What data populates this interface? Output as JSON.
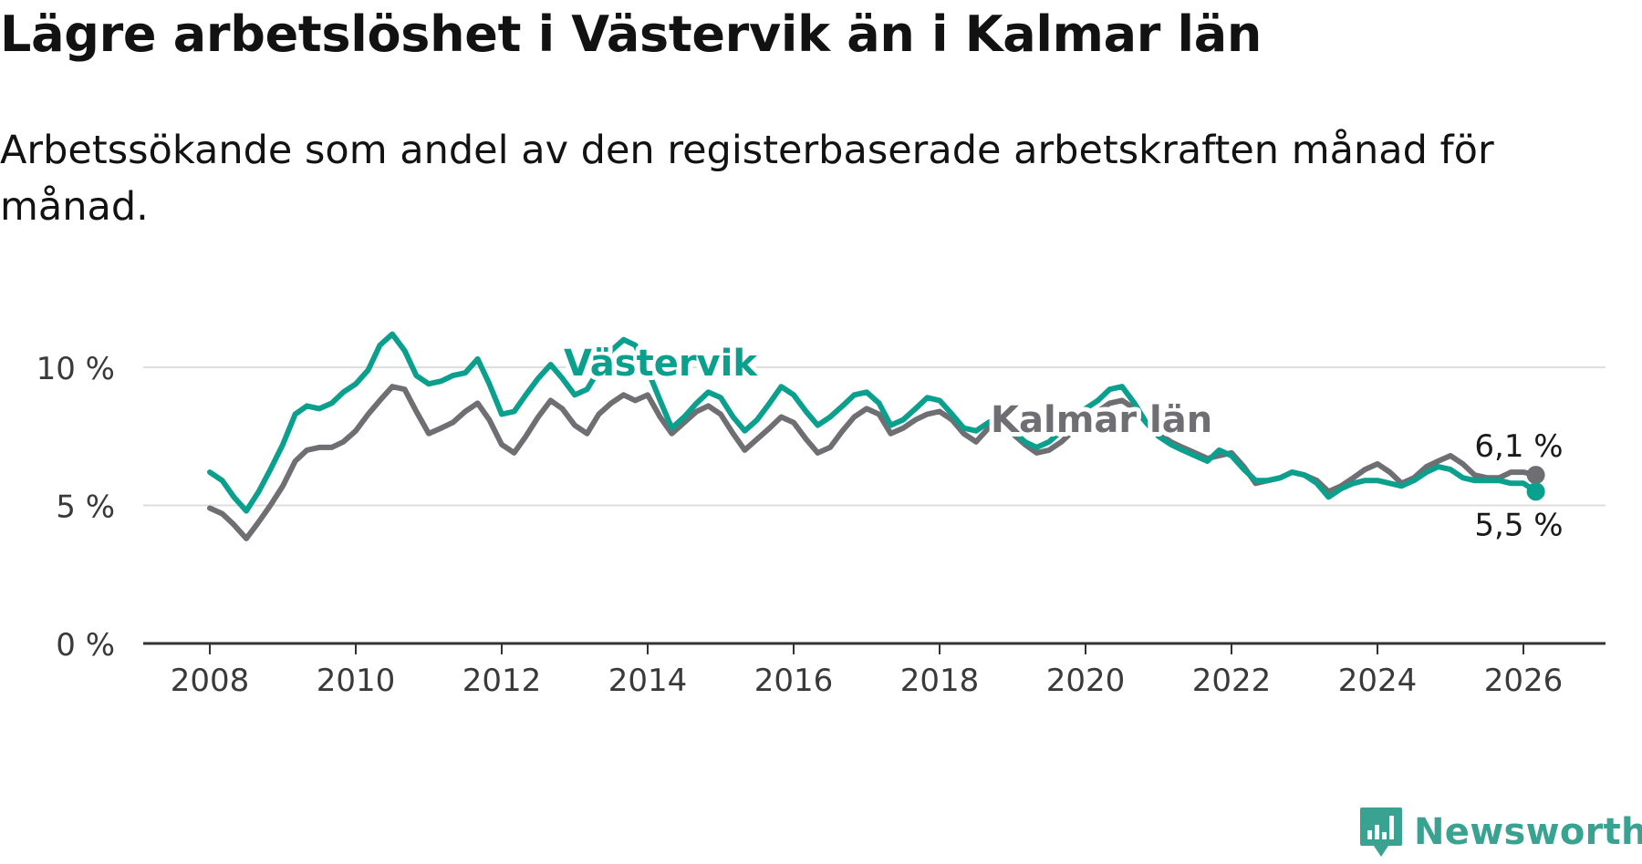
{
  "title": "Lägre arbetslöshet i Västervik än i Kalmar län",
  "subtitle": "Arbetssökande som andel av den registerbaserade arbetskraften månad för månad.",
  "brand": {
    "name": "Newsworthy",
    "icon": "newsworthy-logo-icon",
    "color": "#3aa290"
  },
  "chart_data": {
    "type": "line",
    "title": "Lägre arbetslöshet i Västervik än i Kalmar län",
    "subtitle": "Arbetssökande som andel av den registerbaserade arbetskraften månad för månad.",
    "xlabel": "",
    "ylabel": "",
    "xlim": [
      2007.5,
      2027.1
    ],
    "ylim": [
      0,
      10
    ],
    "yticks": [
      0,
      5,
      10
    ],
    "ytick_labels": [
      "0 %",
      "5 %",
      "10 %"
    ],
    "xticks": [
      2008,
      2010,
      2012,
      2014,
      2016,
      2018,
      2020,
      2022,
      2024,
      2026
    ],
    "xtick_labels": [
      "2008",
      "2010",
      "2012",
      "2014",
      "2016",
      "2018",
      "2020",
      "2022",
      "2024",
      "2026"
    ],
    "grid": true,
    "series": [
      {
        "name": "Kalmar län",
        "color": "#6f6e73",
        "label": "Kalmar län",
        "end_label": "6,1 %",
        "points": [
          [
            2008.0,
            4.9
          ],
          [
            2008.17,
            4.7
          ],
          [
            2008.33,
            4.3
          ],
          [
            2008.5,
            3.8
          ],
          [
            2008.67,
            4.4
          ],
          [
            2008.83,
            5.0
          ],
          [
            2009.0,
            5.7
          ],
          [
            2009.17,
            6.6
          ],
          [
            2009.33,
            7.0
          ],
          [
            2009.5,
            7.1
          ],
          [
            2009.67,
            7.1
          ],
          [
            2009.83,
            7.3
          ],
          [
            2010.0,
            7.7
          ],
          [
            2010.17,
            8.3
          ],
          [
            2010.33,
            8.8
          ],
          [
            2010.5,
            9.3
          ],
          [
            2010.67,
            9.2
          ],
          [
            2010.83,
            8.4
          ],
          [
            2011.0,
            7.6
          ],
          [
            2011.17,
            7.8
          ],
          [
            2011.33,
            8.0
          ],
          [
            2011.5,
            8.4
          ],
          [
            2011.67,
            8.7
          ],
          [
            2011.83,
            8.1
          ],
          [
            2012.0,
            7.2
          ],
          [
            2012.17,
            6.9
          ],
          [
            2012.33,
            7.5
          ],
          [
            2012.5,
            8.2
          ],
          [
            2012.67,
            8.8
          ],
          [
            2012.83,
            8.5
          ],
          [
            2013.0,
            7.9
          ],
          [
            2013.17,
            7.6
          ],
          [
            2013.33,
            8.3
          ],
          [
            2013.5,
            8.7
          ],
          [
            2013.67,
            9.0
          ],
          [
            2013.83,
            8.8
          ],
          [
            2014.0,
            9.0
          ],
          [
            2014.17,
            8.2
          ],
          [
            2014.33,
            7.6
          ],
          [
            2014.5,
            8.0
          ],
          [
            2014.67,
            8.4
          ],
          [
            2014.83,
            8.6
          ],
          [
            2015.0,
            8.3
          ],
          [
            2015.17,
            7.6
          ],
          [
            2015.33,
            7.0
          ],
          [
            2015.5,
            7.4
          ],
          [
            2015.67,
            7.8
          ],
          [
            2015.83,
            8.2
          ],
          [
            2016.0,
            8.0
          ],
          [
            2016.17,
            7.4
          ],
          [
            2016.33,
            6.9
          ],
          [
            2016.5,
            7.1
          ],
          [
            2016.67,
            7.7
          ],
          [
            2016.83,
            8.2
          ],
          [
            2017.0,
            8.5
          ],
          [
            2017.17,
            8.3
          ],
          [
            2017.33,
            7.6
          ],
          [
            2017.5,
            7.8
          ],
          [
            2017.67,
            8.1
          ],
          [
            2017.83,
            8.3
          ],
          [
            2018.0,
            8.4
          ],
          [
            2018.17,
            8.1
          ],
          [
            2018.33,
            7.6
          ],
          [
            2018.5,
            7.3
          ],
          [
            2018.67,
            7.8
          ],
          [
            2018.83,
            8.0
          ],
          [
            2019.0,
            7.6
          ],
          [
            2019.17,
            7.2
          ],
          [
            2019.33,
            6.9
          ],
          [
            2019.5,
            7.0
          ],
          [
            2019.67,
            7.3
          ],
          [
            2019.83,
            7.7
          ],
          [
            2020.0,
            8.2
          ],
          [
            2020.17,
            8.4
          ],
          [
            2020.33,
            8.7
          ],
          [
            2020.5,
            8.8
          ],
          [
            2020.67,
            8.5
          ],
          [
            2020.83,
            8.0
          ],
          [
            2021.0,
            7.6
          ],
          [
            2021.17,
            7.3
          ],
          [
            2021.33,
            7.1
          ],
          [
            2021.5,
            6.9
          ],
          [
            2021.67,
            6.7
          ],
          [
            2021.83,
            6.8
          ],
          [
            2022.0,
            6.9
          ],
          [
            2022.17,
            6.4
          ],
          [
            2022.33,
            5.8
          ],
          [
            2022.5,
            5.9
          ],
          [
            2022.67,
            6.0
          ],
          [
            2022.83,
            6.2
          ],
          [
            2023.0,
            6.1
          ],
          [
            2023.17,
            5.9
          ],
          [
            2023.33,
            5.5
          ],
          [
            2023.5,
            5.7
          ],
          [
            2023.67,
            6.0
          ],
          [
            2023.83,
            6.3
          ],
          [
            2024.0,
            6.5
          ],
          [
            2024.17,
            6.2
          ],
          [
            2024.33,
            5.8
          ],
          [
            2024.5,
            6.0
          ],
          [
            2024.67,
            6.4
          ],
          [
            2024.83,
            6.6
          ],
          [
            2025.0,
            6.8
          ],
          [
            2025.17,
            6.5
          ],
          [
            2025.33,
            6.1
          ],
          [
            2025.5,
            6.0
          ],
          [
            2025.67,
            6.0
          ],
          [
            2025.83,
            6.2
          ],
          [
            2026.0,
            6.2
          ],
          [
            2026.17,
            6.1
          ]
        ]
      },
      {
        "name": "Västervik",
        "color": "#0b9f8e",
        "label": "Västervik",
        "end_label": "5,5 %",
        "points": [
          [
            2008.0,
            6.2
          ],
          [
            2008.17,
            5.9
          ],
          [
            2008.33,
            5.3
          ],
          [
            2008.5,
            4.8
          ],
          [
            2008.67,
            5.5
          ],
          [
            2008.83,
            6.3
          ],
          [
            2009.0,
            7.2
          ],
          [
            2009.17,
            8.3
          ],
          [
            2009.33,
            8.6
          ],
          [
            2009.5,
            8.5
          ],
          [
            2009.67,
            8.7
          ],
          [
            2009.83,
            9.1
          ],
          [
            2010.0,
            9.4
          ],
          [
            2010.17,
            9.9
          ],
          [
            2010.33,
            10.8
          ],
          [
            2010.5,
            11.2
          ],
          [
            2010.67,
            10.6
          ],
          [
            2010.83,
            9.7
          ],
          [
            2011.0,
            9.4
          ],
          [
            2011.17,
            9.5
          ],
          [
            2011.33,
            9.7
          ],
          [
            2011.5,
            9.8
          ],
          [
            2011.67,
            10.3
          ],
          [
            2011.83,
            9.4
          ],
          [
            2012.0,
            8.3
          ],
          [
            2012.17,
            8.4
          ],
          [
            2012.33,
            9.0
          ],
          [
            2012.5,
            9.6
          ],
          [
            2012.67,
            10.1
          ],
          [
            2012.83,
            9.6
          ],
          [
            2013.0,
            9.0
          ],
          [
            2013.17,
            9.2
          ],
          [
            2013.33,
            9.9
          ],
          [
            2013.5,
            10.6
          ],
          [
            2013.67,
            11.0
          ],
          [
            2013.83,
            10.8
          ],
          [
            2014.0,
            9.9
          ],
          [
            2014.17,
            8.8
          ],
          [
            2014.33,
            7.8
          ],
          [
            2014.5,
            8.2
          ],
          [
            2014.67,
            8.7
          ],
          [
            2014.83,
            9.1
          ],
          [
            2015.0,
            8.9
          ],
          [
            2015.17,
            8.2
          ],
          [
            2015.33,
            7.7
          ],
          [
            2015.5,
            8.1
          ],
          [
            2015.67,
            8.7
          ],
          [
            2015.83,
            9.3
          ],
          [
            2016.0,
            9.0
          ],
          [
            2016.17,
            8.4
          ],
          [
            2016.33,
            7.9
          ],
          [
            2016.5,
            8.2
          ],
          [
            2016.67,
            8.6
          ],
          [
            2016.83,
            9.0
          ],
          [
            2017.0,
            9.1
          ],
          [
            2017.17,
            8.7
          ],
          [
            2017.33,
            7.9
          ],
          [
            2017.5,
            8.1
          ],
          [
            2017.67,
            8.5
          ],
          [
            2017.83,
            8.9
          ],
          [
            2018.0,
            8.8
          ],
          [
            2018.17,
            8.3
          ],
          [
            2018.33,
            7.8
          ],
          [
            2018.5,
            7.7
          ],
          [
            2018.67,
            8.0
          ],
          [
            2018.83,
            8.2
          ],
          [
            2019.0,
            7.7
          ],
          [
            2019.17,
            7.3
          ],
          [
            2019.33,
            7.1
          ],
          [
            2019.5,
            7.3
          ],
          [
            2019.67,
            7.7
          ],
          [
            2019.83,
            8.2
          ],
          [
            2020.0,
            8.5
          ],
          [
            2020.17,
            8.8
          ],
          [
            2020.33,
            9.2
          ],
          [
            2020.5,
            9.3
          ],
          [
            2020.67,
            8.7
          ],
          [
            2020.83,
            8.0
          ],
          [
            2021.0,
            7.5
          ],
          [
            2021.17,
            7.2
          ],
          [
            2021.33,
            7.0
          ],
          [
            2021.5,
            6.8
          ],
          [
            2021.67,
            6.6
          ],
          [
            2021.83,
            7.0
          ],
          [
            2022.0,
            6.8
          ],
          [
            2022.17,
            6.3
          ],
          [
            2022.33,
            5.9
          ],
          [
            2022.5,
            5.9
          ],
          [
            2022.67,
            6.0
          ],
          [
            2022.83,
            6.2
          ],
          [
            2023.0,
            6.1
          ],
          [
            2023.17,
            5.8
          ],
          [
            2023.33,
            5.3
          ],
          [
            2023.5,
            5.6
          ],
          [
            2023.67,
            5.8
          ],
          [
            2023.83,
            5.9
          ],
          [
            2024.0,
            5.9
          ],
          [
            2024.17,
            5.8
          ],
          [
            2024.33,
            5.7
          ],
          [
            2024.5,
            5.9
          ],
          [
            2024.67,
            6.2
          ],
          [
            2024.83,
            6.4
          ],
          [
            2025.0,
            6.3
          ],
          [
            2025.17,
            6.0
          ],
          [
            2025.33,
            5.9
          ],
          [
            2025.5,
            5.9
          ],
          [
            2025.67,
            5.9
          ],
          [
            2025.83,
            5.8
          ],
          [
            2026.0,
            5.8
          ],
          [
            2026.17,
            5.5
          ]
        ]
      }
    ]
  }
}
